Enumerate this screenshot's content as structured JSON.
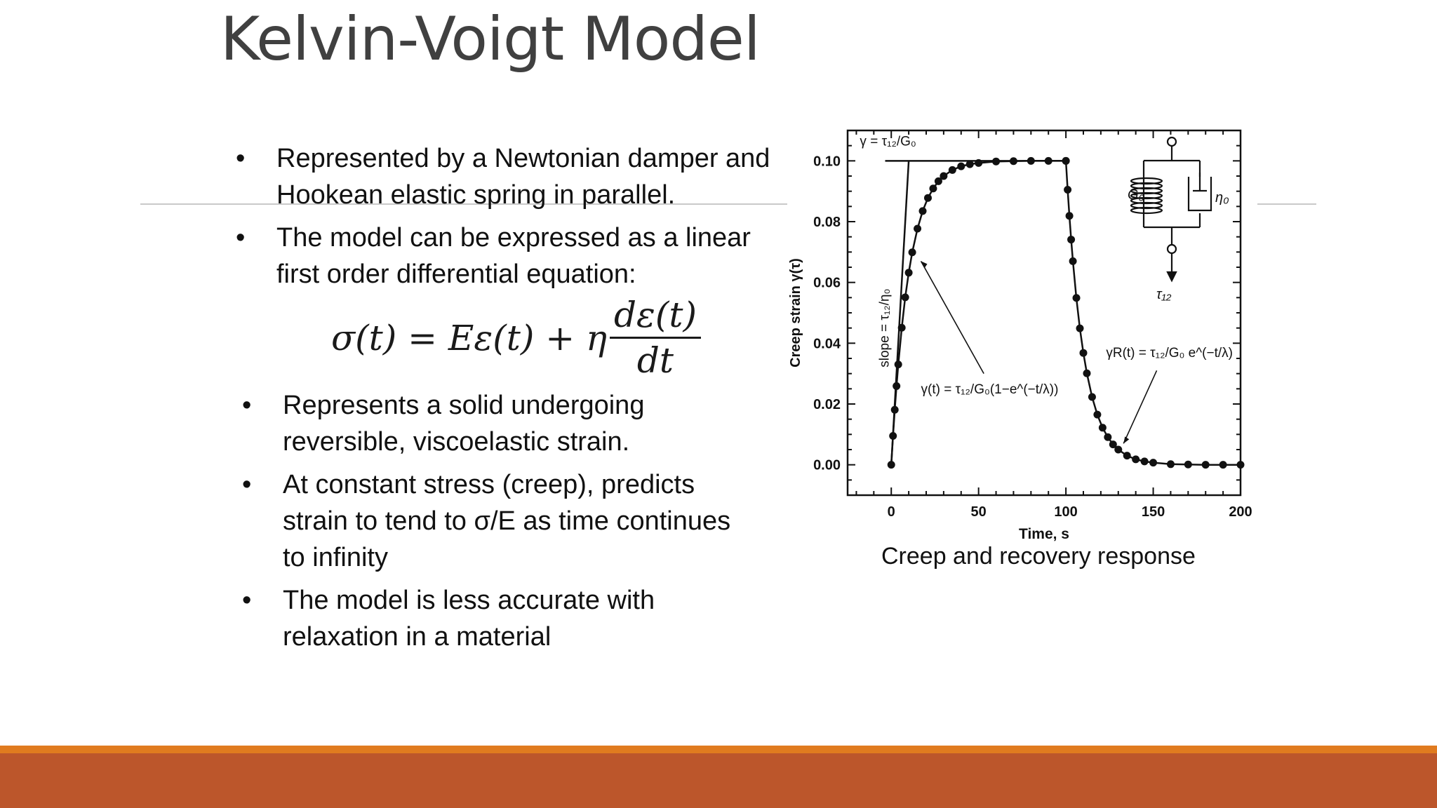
{
  "slide": {
    "title": "Kelvin-Voigt Model"
  },
  "bullets_top": [
    {
      "line1": "Represented by a Newtonian damper and",
      "line2": "Hookean elastic spring in parallel."
    },
    {
      "line1": "The model can be expressed as a linear",
      "line2": "first order differential equation:"
    }
  ],
  "equation": {
    "lhs": "σ(t) = Eε(t) + η",
    "numerator": "dε(t)",
    "denominator": "dt"
  },
  "bullets_bottom": [
    {
      "lines": [
        "Represents a solid undergoing",
        "reversible, viscoelastic strain."
      ]
    },
    {
      "lines": [
        "At constant stress (creep), predicts",
        "strain to tend to σ/E as time continues",
        "to infinity"
      ]
    },
    {
      "lines": [
        "The model is less accurate with",
        "relaxation in a material"
      ]
    }
  ],
  "bullet_symbol": "•",
  "chart_data": {
    "type": "scatter",
    "xlabel": "Time, s",
    "ylabel": "Creep strain γ(τ)",
    "xlim": [
      -25,
      200
    ],
    "ylim": [
      -0.01,
      0.11
    ],
    "x_ticks": [
      0,
      50,
      100,
      150,
      200
    ],
    "y_ticks": [
      0.0,
      0.02,
      0.04,
      0.06,
      0.08,
      0.1
    ],
    "y_tick_labels": [
      "0.00",
      "0.02",
      "0.04",
      "0.06",
      "0.08",
      "0.10"
    ],
    "series": [
      {
        "points": [
          [
            0,
            0.0
          ],
          [
            1,
            0.0095
          ],
          [
            2,
            0.0181
          ],
          [
            3,
            0.0259
          ],
          [
            4,
            0.033
          ],
          [
            6,
            0.0451
          ],
          [
            8,
            0.0551
          ],
          [
            10,
            0.0632
          ],
          [
            12,
            0.0699
          ],
          [
            15,
            0.0777
          ],
          [
            18,
            0.0835
          ],
          [
            21,
            0.0878
          ],
          [
            24,
            0.0909
          ],
          [
            27,
            0.0933
          ],
          [
            30,
            0.095
          ],
          [
            35,
            0.097
          ],
          [
            40,
            0.0982
          ],
          [
            45,
            0.0989
          ],
          [
            50,
            0.0993
          ],
          [
            60,
            0.0998
          ],
          [
            70,
            0.0999
          ],
          [
            80,
            0.1
          ],
          [
            90,
            0.1
          ],
          [
            100,
            0.1
          ],
          [
            100,
            0.1
          ],
          [
            101,
            0.0905
          ],
          [
            102,
            0.0819
          ],
          [
            103,
            0.0741
          ],
          [
            104,
            0.067
          ],
          [
            106,
            0.0549
          ],
          [
            108,
            0.0449
          ],
          [
            110,
            0.0368
          ],
          [
            112,
            0.0301
          ],
          [
            115,
            0.0223
          ],
          [
            118,
            0.0165
          ],
          [
            121,
            0.0122
          ],
          [
            124,
            0.0091
          ],
          [
            127,
            0.0067
          ],
          [
            130,
            0.005
          ],
          [
            135,
            0.003
          ],
          [
            140,
            0.0018
          ],
          [
            145,
            0.0011
          ],
          [
            150,
            0.0007
          ],
          [
            160,
            0.0002
          ],
          [
            170,
            0.0001
          ],
          [
            180,
            0.0
          ],
          [
            190,
            0.0
          ],
          [
            200,
            0.0
          ]
        ]
      }
    ],
    "annotations": {
      "plateau_label": "γ = τ₁₂/G₀",
      "slope_label": "slope = τ₁₂/η₀",
      "creep_formula": "γ(t) = τ₁₂/G₀(1−e^(−t/λ))",
      "recovery_formula": "γR(t) = τ₁₂/G₀ e^(−t/λ)",
      "spring_label": "G₀",
      "damper_label": "η₀",
      "stress_label": "τ₁₂"
    },
    "grid": false
  },
  "caption": "Creep and recovery response",
  "colors": {
    "title": "#404040",
    "footer_orange": "#e07b1f",
    "footer_rust": "#bc562b",
    "rule": "#c9c9c9"
  }
}
